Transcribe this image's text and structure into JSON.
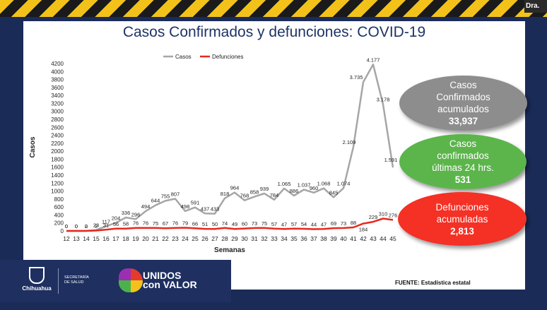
{
  "participant_name": "Dra.",
  "slide": {
    "title": "Casos Confirmados y defunciones: COVID-19",
    "source": "FUENTE: Estadística estatal"
  },
  "summary": {
    "confirmed_label_1": "Casos",
    "confirmed_label_2": "Confirmados",
    "confirmed_label_3": "acumulados",
    "confirmed_value": "33,937",
    "last24_label_1": "Casos",
    "last24_label_2": "confirmados",
    "last24_label_3": "últimas 24 hrs.",
    "last24_value": "531",
    "deaths_label_1": "Defunciones",
    "deaths_label_2": "acumuladas",
    "deaths_value": "2,813"
  },
  "footer": {
    "chihuahua_label": "Chihuahua",
    "secretaria_1": "SECRETARÍA",
    "secretaria_2": "DE SALUD",
    "unidos_1": "UNIDOS",
    "unidos_2": "con VALOR"
  },
  "colors": {
    "cases_line": "#a6a6a6",
    "deaths_line": "#e8281e",
    "title": "#1e3466"
  },
  "chart_data": {
    "type": "line",
    "title": "Casos Confirmados y defunciones: COVID-19",
    "xlabel": "Semanas",
    "ylabel": "Casos",
    "ylim": [
      0,
      4200
    ],
    "yticks": [
      0,
      200,
      400,
      600,
      800,
      1000,
      1200,
      1400,
      1600,
      1800,
      2000,
      2200,
      2400,
      2600,
      2800,
      3000,
      3200,
      3400,
      3600,
      3800,
      4000,
      4200
    ],
    "legend_position": "top-left",
    "categories": [
      "12",
      "13",
      "14",
      "15",
      "16",
      "17",
      "18",
      "19",
      "20",
      "21",
      "22",
      "23",
      "24",
      "25",
      "26",
      "27",
      "28",
      "29",
      "30",
      "31",
      "32",
      "33",
      "34",
      "35",
      "36",
      "37",
      "38",
      "39",
      "40",
      "41",
      "42",
      "43",
      "44",
      "45"
    ],
    "series": [
      {
        "name": "Casos",
        "values": [
          0,
          0,
          2,
          23,
          117,
          204,
          336,
          296,
          494,
          644,
          755,
          807,
          498,
          591,
          437,
          433,
          818,
          964,
          768,
          858,
          939,
          784,
          1065,
          886,
          1037,
          960,
          1068,
          845,
          1074,
          2109,
          3735,
          4177,
          3178,
          1591
        ],
        "labels": [
          "0",
          "0",
          "2",
          "23",
          "117",
          "204",
          "336",
          "296",
          "494",
          "644",
          "755",
          "807",
          "498",
          "591",
          "437",
          "433",
          "818",
          "964",
          "768",
          "858",
          "939",
          "784",
          "1.065",
          "886",
          "1.037",
          "960",
          "1.068",
          "845",
          "1.074",
          "2.109",
          "3.735",
          "4.177",
          "3.178",
          "1.591"
        ]
      },
      {
        "name": "Defunciones",
        "values": [
          0,
          0,
          0,
          9,
          31,
          56,
          58,
          76,
          76,
          75,
          67,
          76,
          79,
          66,
          51,
          50,
          74,
          49,
          60,
          73,
          75,
          57,
          47,
          57,
          54,
          44,
          47,
          69,
          73,
          88,
          184,
          229,
          310,
          276
        ],
        "labels": [
          "0",
          "0",
          "0",
          "9",
          "31",
          "56",
          "58",
          "76",
          "76",
          "75",
          "67",
          "76",
          "79",
          "66",
          "51",
          "50",
          "74",
          "49",
          "60",
          "73",
          "75",
          "57",
          "47",
          "57",
          "54",
          "44",
          "47",
          "69",
          "73",
          "88",
          "184",
          "229",
          "310",
          "276"
        ]
      }
    ]
  }
}
